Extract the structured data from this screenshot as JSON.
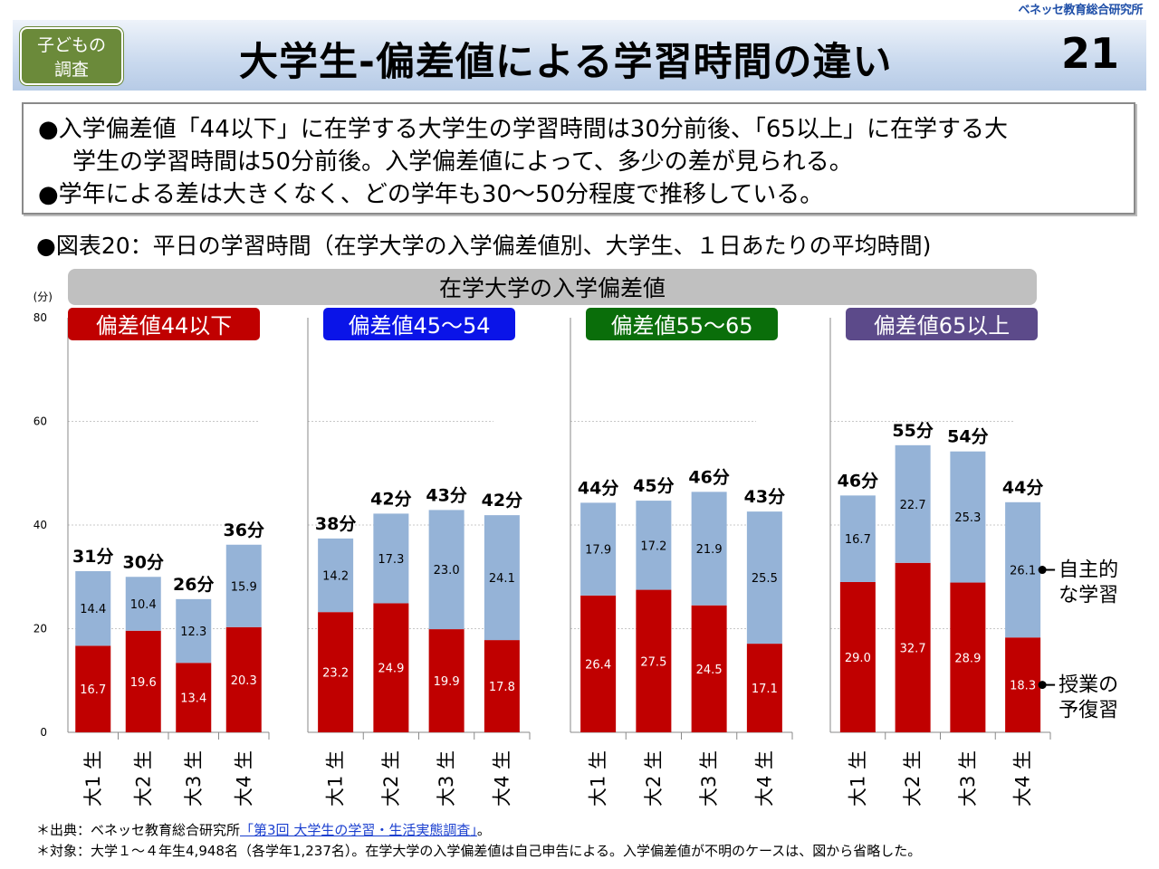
{
  "org": "ベネッセ教育総合研究所",
  "header": {
    "badge_line1": "子どもの",
    "badge_line2": "調査",
    "title": "大学生-偏差値による学習時間の違い",
    "page_number": "21"
  },
  "summary": {
    "bullet1_line1": "●入学偏差値「44以下」に在学する大学生の学習時間は30分前後、「65以上」に在学する大",
    "bullet1_line2": "学生の学習時間は50分前後。入学偏差値によって、多少の差が見られる。",
    "bullet2": "●学年による差は大きくなく、どの学年も30～50分程度で推移している。"
  },
  "figure_title": "●図表20：平日の学習時間（在学大学の入学偏差値別、大学生、１日あたりの平均時間)",
  "footer": {
    "source_prefix": "＊出典：ベネッセ教育総合研究所",
    "source_link": "「第3回 大学生の学習・生活実態調査」",
    "source_suffix": "。",
    "note": "＊対象：大学１～４年生4,948名（各学年1,237名）。在学大学の入学偏差値は自己申告による。入学偏差値が不明のケースは、図から省略した。"
  },
  "colors": {
    "class_prep": "#c00000",
    "self_study": "#95b3d7",
    "group_44": "#c00000",
    "group_45": "#0a14e8",
    "group_55": "#0a6e0a",
    "group_65": "#5c4a8a",
    "category_bar": "#c0c0c0"
  },
  "chart_data": {
    "type": "bar",
    "stacked": true,
    "title": "在学大学の入学偏差値",
    "ylabel": "(分)",
    "ylim": [
      0,
      80
    ],
    "yticks": [
      0,
      20,
      40,
      60,
      80
    ],
    "categories": [
      "大1 生",
      "大2 生",
      "大3 生",
      "大4 生"
    ],
    "groups": [
      {
        "label": "偏差値44以下",
        "class_prep": [
          16.7,
          19.6,
          13.4,
          20.3
        ],
        "self_study": [
          14.4,
          10.4,
          12.3,
          15.9
        ],
        "totals": [
          "31分",
          "30分",
          "26分",
          "36分"
        ]
      },
      {
        "label": "偏差値45～54",
        "class_prep": [
          23.2,
          24.9,
          19.9,
          17.8
        ],
        "self_study": [
          14.2,
          17.3,
          23.0,
          24.1
        ],
        "totals": [
          "38分",
          "42分",
          "43分",
          "42分"
        ]
      },
      {
        "label": "偏差値55～65",
        "class_prep": [
          26.4,
          27.5,
          24.5,
          17.1
        ],
        "self_study": [
          17.9,
          17.2,
          21.9,
          25.5
        ],
        "totals": [
          "44分",
          "45分",
          "46分",
          "43分"
        ]
      },
      {
        "label": "偏差値65以上",
        "class_prep": [
          29.0,
          32.7,
          28.9,
          18.3
        ],
        "self_study": [
          16.7,
          22.7,
          25.3,
          26.1
        ],
        "totals": [
          "46分",
          "55分",
          "54分",
          "44分"
        ]
      }
    ],
    "series": [
      {
        "name": "授業の予復習",
        "label_line1": "授業の",
        "label_line2": "予復習"
      },
      {
        "name": "自主的な学習",
        "label_line1": "自主的",
        "label_line2": "な学習"
      }
    ]
  }
}
